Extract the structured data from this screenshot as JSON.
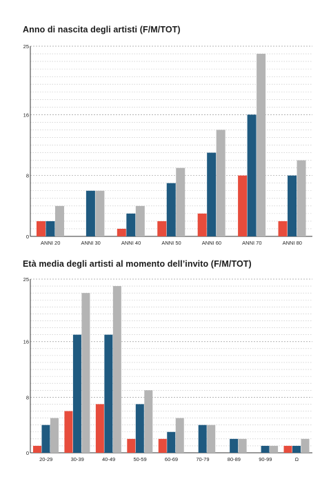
{
  "colors": {
    "female": "#e74c3c",
    "male": "#1f5a80",
    "total": "#b4b4b4",
    "axis": "#333333",
    "grid": "#bdbdbd"
  },
  "chart_data": [
    {
      "type": "bar",
      "title": "Anno di nascita degli artisti (F/M/TOT)",
      "categories": [
        "ANNI 20",
        "ANNI 30",
        "ANNI 40",
        "ANNI 50",
        "ANNI 60",
        "ANNI 70",
        "ANNI 80"
      ],
      "series": [
        {
          "values": [
            2,
            0,
            1,
            2,
            3,
            8,
            2
          ]
        },
        {
          "values": [
            2,
            6,
            3,
            7,
            11,
            16,
            8
          ]
        },
        {
          "values": [
            4,
            6,
            4,
            9,
            14,
            24,
            10
          ]
        }
      ],
      "ylim": [
        0,
        25
      ],
      "yticks": [
        0,
        8,
        16,
        25
      ],
      "grid": true,
      "legend": "none"
    },
    {
      "type": "bar",
      "title": "Età media degli artisti al momento dell’invito (F/M/TOT)",
      "categories": [
        "20-29",
        "30-39",
        "40-49",
        "50-59",
        "60-69",
        "70-79",
        "80-89",
        "90-99",
        "Ω"
      ],
      "series": [
        {
          "values": [
            1,
            6,
            7,
            2,
            2,
            0,
            0,
            0,
            1
          ]
        },
        {
          "values": [
            4,
            17,
            17,
            7,
            3,
            4,
            2,
            1,
            1
          ]
        },
        {
          "values": [
            5,
            23,
            24,
            9,
            5,
            4,
            2,
            1,
            2
          ]
        }
      ],
      "ylim": [
        0,
        25
      ],
      "yticks": [
        0,
        8,
        16,
        25
      ],
      "grid": true,
      "legend": "none"
    }
  ]
}
